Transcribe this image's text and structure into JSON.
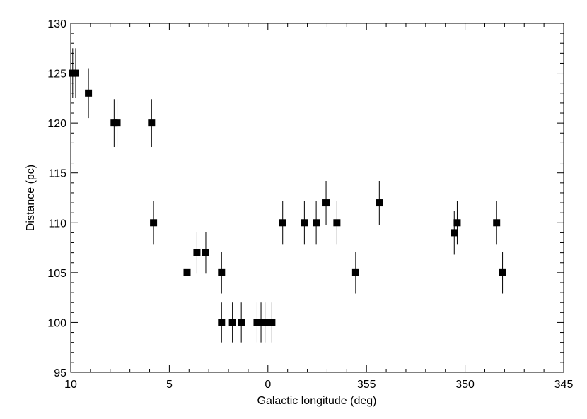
{
  "chart_data": {
    "type": "scatter",
    "title": "",
    "xlabel": "Galactic longitude (deg)",
    "ylabel": "Distance (pc)",
    "xlim": [
      10,
      345
    ],
    "xlim_note": "",
    "ylim": [
      95,
      130
    ],
    "x_ticks": [
      {
        "label": "10"
      },
      {
        "label": "5"
      },
      {
        "label": "0"
      },
      {
        "label": "355"
      },
      {
        "label": "350"
      },
      {
        "label": "345"
      }
    ],
    "y_ticks": [
      {
        "label": "95"
      },
      {
        "label": "100"
      },
      {
        "label": "105"
      },
      {
        "label": "110"
      },
      {
        "label": "115"
      },
      {
        "label": "120"
      },
      {
        "label": "125"
      },
      {
        "label": "130"
      }
    ],
    "y_tick_values": [
      95,
      100,
      105,
      110,
      115,
      120,
      125,
      130
    ],
    "x_tick_values": [
      10,
      5,
      0,
      355,
      350,
      345
    ],
    "grid": false,
    "legend": "none",
    "marker": "square",
    "marker_color": "#000000",
    "errorbar_color": "#000000",
    "points": [
      {
        "l": 9.9,
        "d": 125,
        "err": 2.5
      },
      {
        "l": 9.75,
        "d": 125,
        "err": 2.5
      },
      {
        "l": 9.1,
        "d": 123,
        "err": 2.5
      },
      {
        "l": 7.8,
        "d": 120,
        "err": 2.4
      },
      {
        "l": 7.65,
        "d": 120,
        "err": 2.4
      },
      {
        "l": 5.9,
        "d": 120,
        "err": 2.4
      },
      {
        "l": 5.8,
        "d": 110,
        "err": 2.2
      },
      {
        "l": 4.1,
        "d": 105,
        "err": 2.1
      },
      {
        "l": 3.6,
        "d": 107,
        "err": 2.1
      },
      {
        "l": 3.15,
        "d": 107,
        "err": 2.1
      },
      {
        "l": 2.35,
        "d": 105,
        "err": 2.1
      },
      {
        "l": 2.35,
        "d": 100,
        "err": 2.0
      },
      {
        "l": 1.8,
        "d": 100,
        "err": 2.0
      },
      {
        "l": 1.35,
        "d": 100,
        "err": 2.0
      },
      {
        "l": 0.55,
        "d": 100,
        "err": 2.0
      },
      {
        "l": 0.35,
        "d": 100,
        "err": 2.0
      },
      {
        "l": 0.15,
        "d": 100,
        "err": 2.0
      },
      {
        "l": -0.2,
        "d": 100,
        "err": 2.0
      },
      {
        "l": -0.75,
        "d": 110,
        "err": 2.2
      },
      {
        "l": -1.85,
        "d": 110,
        "err": 2.2
      },
      {
        "l": -2.45,
        "d": 110,
        "err": 2.2
      },
      {
        "l": -2.95,
        "d": 112,
        "err": 2.2
      },
      {
        "l": -3.5,
        "d": 110,
        "err": 2.2
      },
      {
        "l": -4.45,
        "d": 105,
        "err": 2.1
      },
      {
        "l": -5.65,
        "d": 112,
        "err": 2.2
      },
      {
        "l": -9.45,
        "d": 109,
        "err": 2.2
      },
      {
        "l": -9.6,
        "d": 110,
        "err": 2.2
      },
      {
        "l": -11.6,
        "d": 110,
        "err": 2.2
      },
      {
        "l": -11.9,
        "d": 105,
        "err": 2.1
      }
    ]
  }
}
